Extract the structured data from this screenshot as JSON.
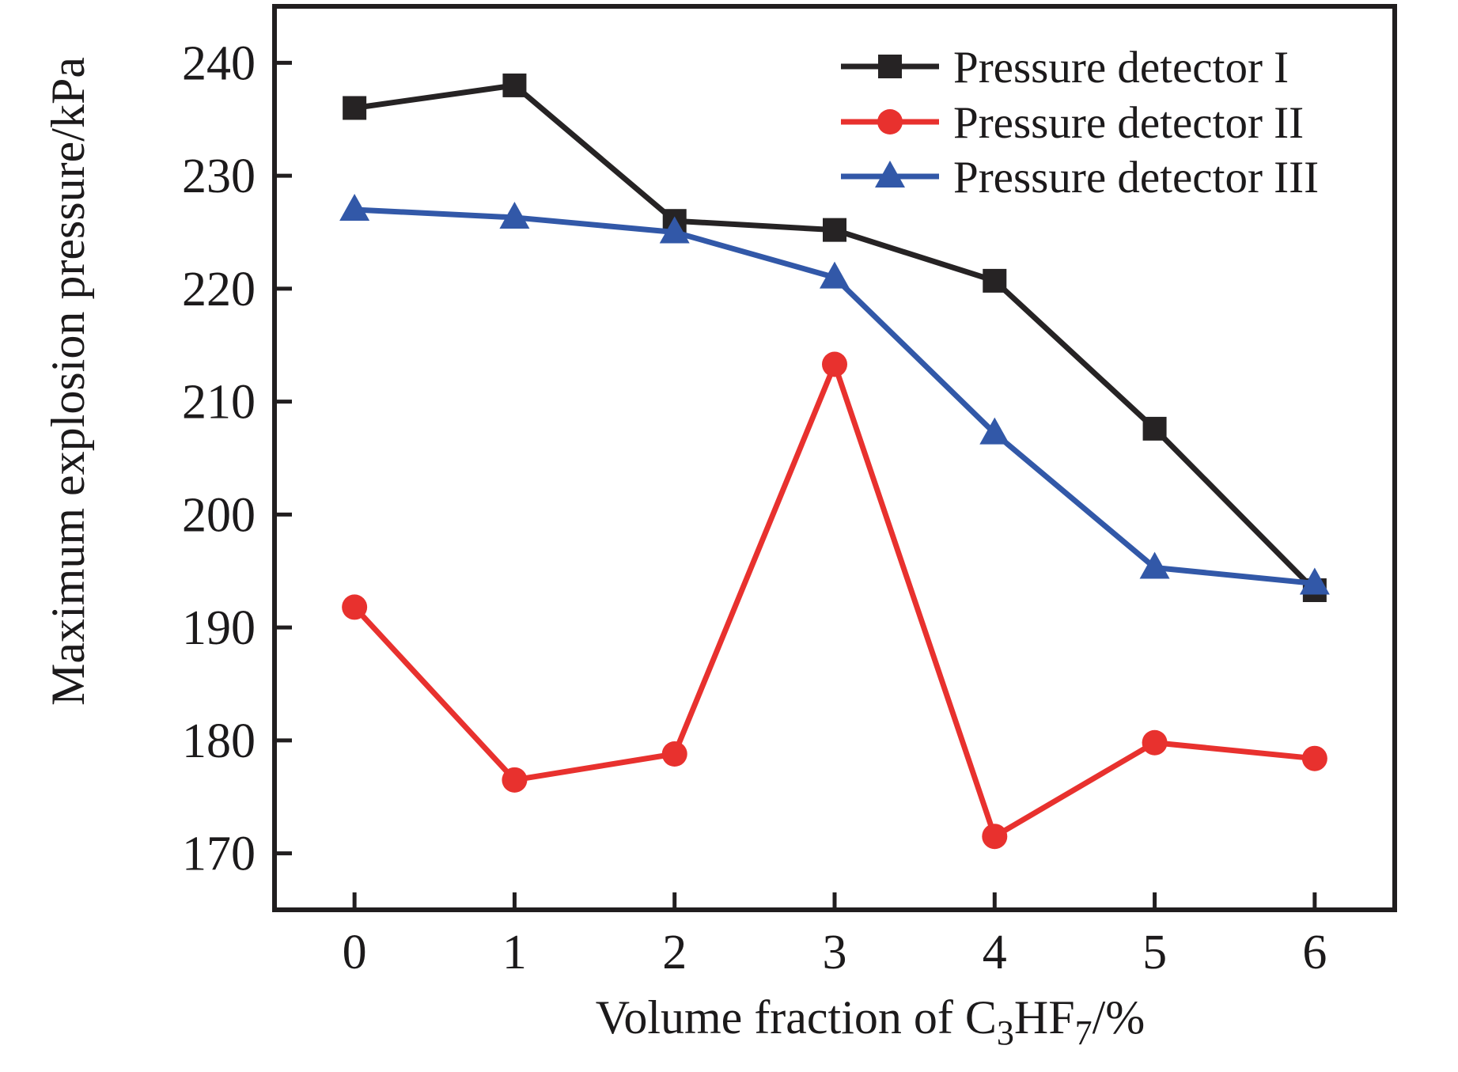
{
  "figure": {
    "background": "#ffffff",
    "axis_color": "#211e1f",
    "tick_label_color": "#3a3637"
  },
  "chart_data": {
    "type": "line",
    "title": "",
    "xlabel_plain": "Volume fraction of C3HF7/%",
    "xlabel_parts": [
      {
        "text": "Volume fraction of C",
        "sub": false
      },
      {
        "text": "3",
        "sub": true
      },
      {
        "text": "HF",
        "sub": false
      },
      {
        "text": "7",
        "sub": true
      },
      {
        "text": "/%",
        "sub": false
      }
    ],
    "ylabel": "Maximum explosion pressure/kPa",
    "x": [
      0,
      1,
      2,
      3,
      4,
      5,
      6
    ],
    "xticks": [
      0,
      1,
      2,
      3,
      4,
      5,
      6
    ],
    "yticks": [
      170,
      180,
      190,
      200,
      210,
      220,
      230,
      240
    ],
    "xlim": [
      -0.5,
      6.5
    ],
    "ylim": [
      165,
      245
    ],
    "grid": false,
    "legend_position": "top-right-inside",
    "series": [
      {
        "name": "Pressure detector I",
        "marker": "square",
        "color": "#262324",
        "values": [
          236.0,
          238.0,
          226.0,
          225.2,
          220.7,
          207.6,
          193.3
        ]
      },
      {
        "name": "Pressure detector II",
        "marker": "circle",
        "color": "#e8312e",
        "values": [
          191.8,
          176.5,
          178.8,
          213.3,
          171.5,
          179.8,
          178.4
        ]
      },
      {
        "name": "Pressure detector III",
        "marker": "triangle",
        "color": "#3258a8",
        "values": [
          227.0,
          226.3,
          225.0,
          221.0,
          207.2,
          195.3,
          193.9
        ]
      }
    ]
  }
}
